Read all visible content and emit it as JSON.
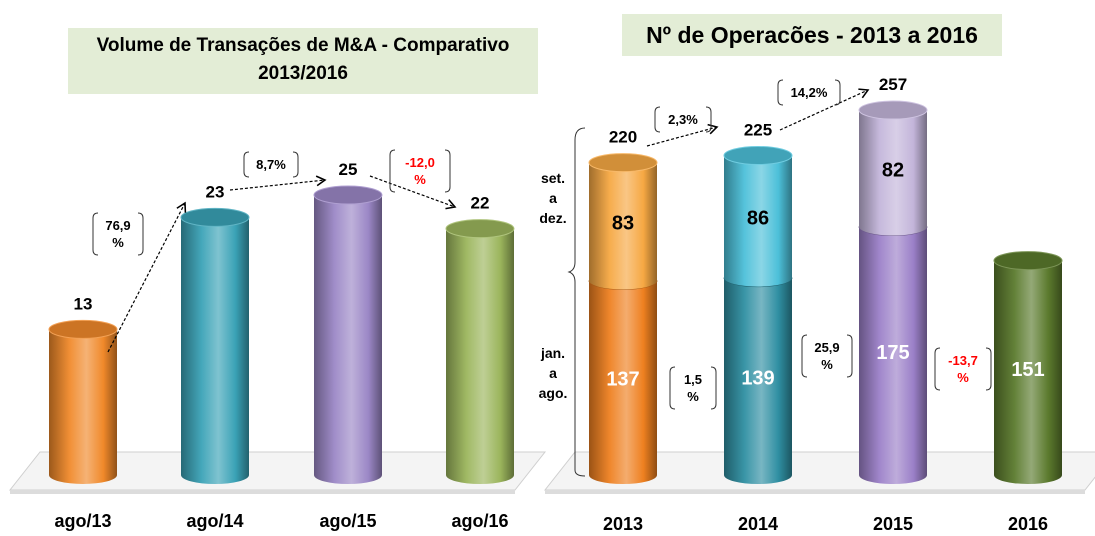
{
  "chart_data": [
    {
      "type": "bar",
      "title": "Volume de Transações de M&A - Comparativo 2013/2016",
      "title_lines": [
        "Volume de Transações de M&A - Comparativo",
        "2013/2016"
      ],
      "categories": [
        "ago/13",
        "ago/14",
        "ago/15",
        "ago/16"
      ],
      "values": [
        13,
        23,
        25,
        22
      ],
      "colors": [
        "#f0892a",
        "#3aa2b6",
        "#9b87c6",
        "#9bb55c"
      ],
      "changes": [
        {
          "lines": [
            "76,9",
            "%"
          ],
          "negative": false
        },
        {
          "lines": [
            "8,7%"
          ],
          "negative": false
        },
        {
          "lines": [
            "-12,0",
            "%"
          ],
          "negative": true
        }
      ],
      "grid": false
    },
    {
      "type": "stacked_bar",
      "title": "Nº de Operacões  - 2013 a 2016",
      "categories": [
        "2013",
        "2014",
        "2015",
        "2016"
      ],
      "series": [
        {
          "name": "jan. a ago.",
          "name_lines": [
            "jan.",
            "a",
            "ago."
          ],
          "values": [
            137,
            139,
            175,
            151
          ],
          "colors": [
            "#ee8020",
            "#2f8fa2",
            "#9b80c8",
            "#5b7a2d"
          ]
        },
        {
          "name": "set. a dez.",
          "name_lines": [
            "set.",
            "a",
            "dez."
          ],
          "values": [
            83,
            86,
            82,
            null
          ],
          "colors": [
            "#f6a843",
            "#4cc0d9",
            "#c3b5da",
            null
          ]
        }
      ],
      "totals": [
        220,
        225,
        257,
        null
      ],
      "total_changes": [
        {
          "lines": [
            "2,3%"
          ]
        },
        {
          "lines": [
            "14,2%"
          ]
        }
      ],
      "period_changes": [
        {
          "lines": [
            "1,5",
            "%"
          ],
          "negative": false
        },
        {
          "lines": [
            "25,9",
            "%"
          ],
          "negative": false
        },
        {
          "lines": [
            "-13,7",
            "%"
          ],
          "negative": true
        }
      ],
      "negative_color": "#ff0000",
      "grid": false
    }
  ]
}
